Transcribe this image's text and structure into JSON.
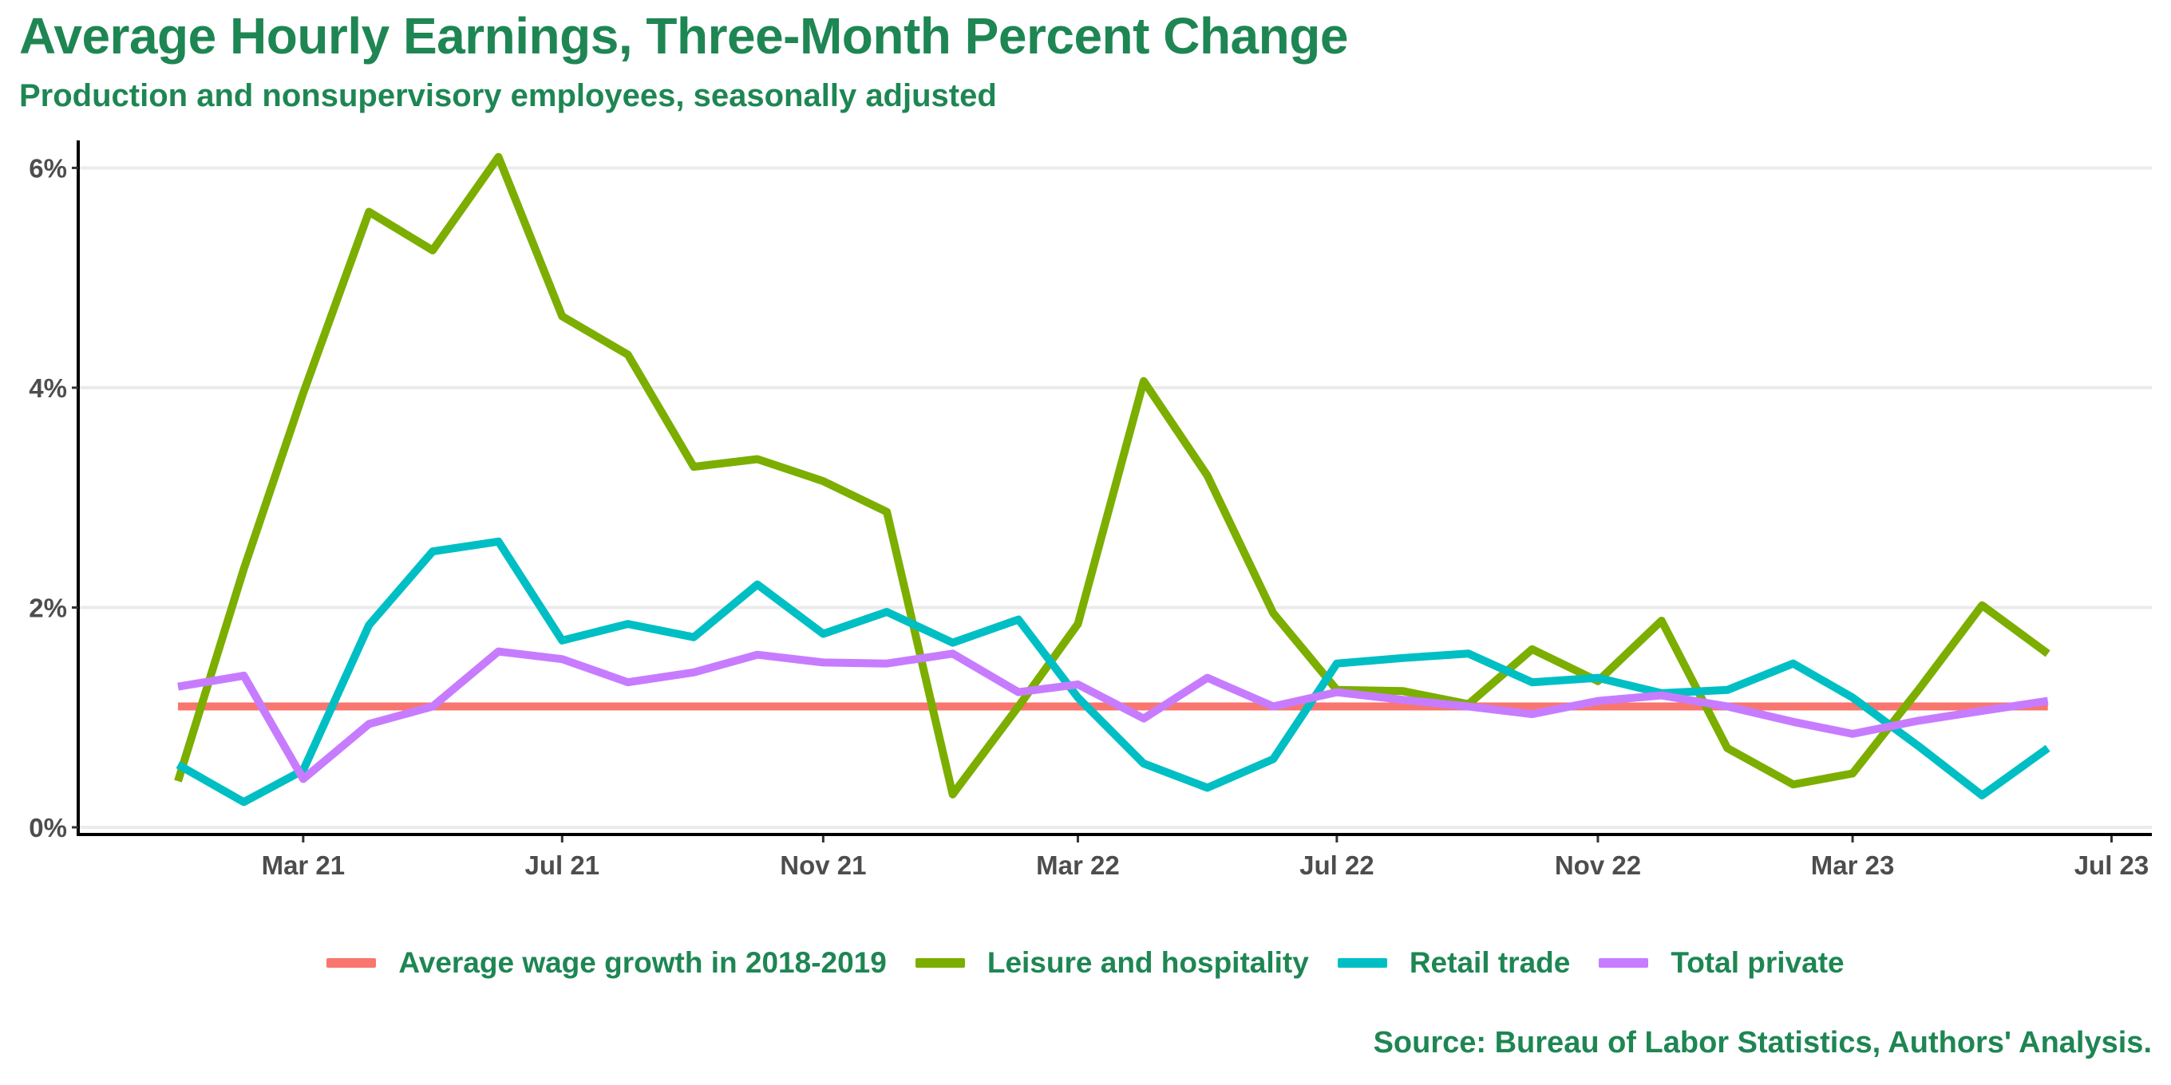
{
  "chart_data": {
    "type": "line",
    "title": "Average Hourly Earnings, Three-Month Percent Change",
    "subtitle": "Production and nonsupervisory employees, seasonally adjusted",
    "caption": "Source: Bureau of Labor Statistics, Authors' Analysis.",
    "xlabel": "",
    "ylabel": "",
    "x": [
      "2021-01",
      "2021-02",
      "2021-03",
      "2021-04",
      "2021-05",
      "2021-06",
      "2021-07",
      "2021-08",
      "2021-09",
      "2021-10",
      "2021-11",
      "2021-12",
      "2022-01",
      "2022-02",
      "2022-03",
      "2022-04",
      "2022-05",
      "2022-06",
      "2022-07",
      "2022-08",
      "2022-09",
      "2022-10",
      "2022-11",
      "2022-12",
      "2023-01",
      "2023-02",
      "2023-03",
      "2023-04",
      "2023-05",
      "2023-06"
    ],
    "xlim": [
      "2020-11-15",
      "2023-07-20"
    ],
    "ylim": [
      0,
      6.25
    ],
    "x_ticks": [
      {
        "date": "2021-03-01",
        "label": "Mar 21"
      },
      {
        "date": "2021-07-01",
        "label": "Jul 21"
      },
      {
        "date": "2021-11-01",
        "label": "Nov 21"
      },
      {
        "date": "2022-03-01",
        "label": "Mar 22"
      },
      {
        "date": "2022-07-01",
        "label": "Jul 22"
      },
      {
        "date": "2022-11-01",
        "label": "Nov 22"
      },
      {
        "date": "2023-03-01",
        "label": "Mar 23"
      },
      {
        "date": "2023-07-01",
        "label": "Jul 23"
      }
    ],
    "y_ticks": [
      {
        "value": 0,
        "label": "0%"
      },
      {
        "value": 2,
        "label": "2%"
      },
      {
        "value": 4,
        "label": "4%"
      },
      {
        "value": 6,
        "label": "6%"
      }
    ],
    "grid": "horizontal",
    "legend_position": "bottom",
    "series": [
      {
        "name": "Average wage growth in 2018-2019",
        "color": "#f8766d",
        "values": [
          1.1,
          1.1,
          1.1,
          1.1,
          1.1,
          1.1,
          1.1,
          1.1,
          1.1,
          1.1,
          1.1,
          1.1,
          1.1,
          1.1,
          1.1,
          1.1,
          1.1,
          1.1,
          1.1,
          1.1,
          1.1,
          1.1,
          1.1,
          1.1,
          1.1,
          1.1,
          1.1,
          1.1,
          1.1,
          1.1
        ]
      },
      {
        "name": "Leisure and hospitality",
        "color": "#7cae00",
        "values": [
          0.42,
          2.35,
          3.95,
          5.6,
          5.25,
          6.1,
          4.65,
          4.3,
          3.28,
          3.35,
          3.15,
          2.87,
          0.3,
          1.1,
          1.85,
          4.06,
          3.2,
          1.95,
          1.25,
          1.24,
          1.12,
          1.62,
          1.33,
          1.88,
          0.72,
          0.39,
          0.49,
          1.25,
          2.02,
          1.58
        ]
      },
      {
        "name": "Retail trade",
        "color": "#00bfc4",
        "values": [
          0.57,
          0.23,
          0.52,
          1.84,
          2.51,
          2.6,
          1.7,
          1.85,
          1.73,
          2.21,
          1.76,
          1.96,
          1.68,
          1.89,
          1.18,
          0.58,
          0.36,
          0.62,
          1.49,
          1.54,
          1.58,
          1.32,
          1.36,
          1.22,
          1.25,
          1.49,
          1.18,
          0.74,
          0.29,
          0.72
        ]
      },
      {
        "name": "Total private",
        "color": "#c77cff",
        "values": [
          1.28,
          1.38,
          0.44,
          0.94,
          1.1,
          1.6,
          1.53,
          1.32,
          1.41,
          1.57,
          1.5,
          1.49,
          1.58,
          1.23,
          1.3,
          0.99,
          1.36,
          1.1,
          1.23,
          1.16,
          1.1,
          1.03,
          1.15,
          1.2,
          1.1,
          0.96,
          0.85,
          0.97,
          1.06,
          1.15
        ]
      }
    ]
  }
}
